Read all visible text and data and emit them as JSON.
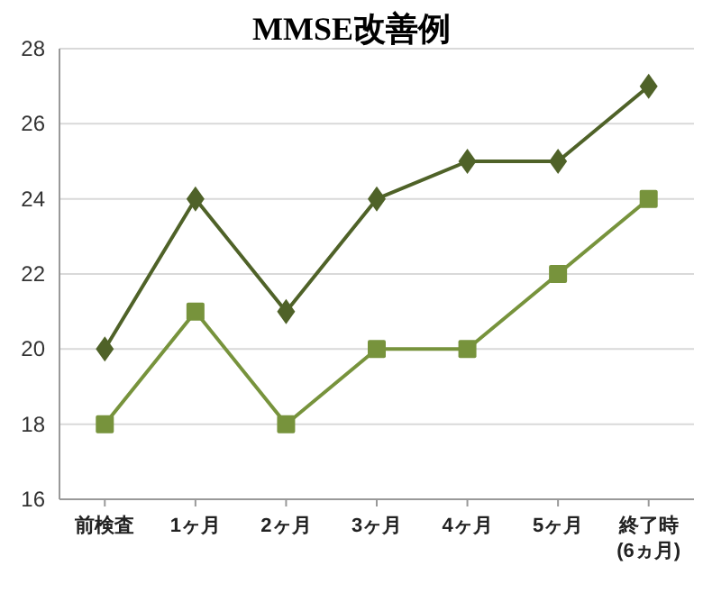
{
  "chart_data": {
    "type": "line",
    "title": "MMSE改善例",
    "categories": [
      "前検査",
      "1ヶ月",
      "2ヶ月",
      "3ヶ月",
      "4ヶ月",
      "5ヶ月",
      "終了時\n(6ヵ月)"
    ],
    "series": [
      {
        "color": "#4f6228",
        "values": [
          20,
          24,
          21,
          24,
          25,
          25,
          27
        ],
        "marker": "diamond"
      },
      {
        "color": "#77933c",
        "values": [
          18,
          21,
          18,
          20,
          20,
          22,
          24
        ],
        "marker": "square"
      }
    ],
    "ylim": [
      16,
      28
    ],
    "yticks": [
      16,
      18,
      20,
      22,
      24,
      26,
      28
    ],
    "grid": "y",
    "line_style": "solid"
  }
}
